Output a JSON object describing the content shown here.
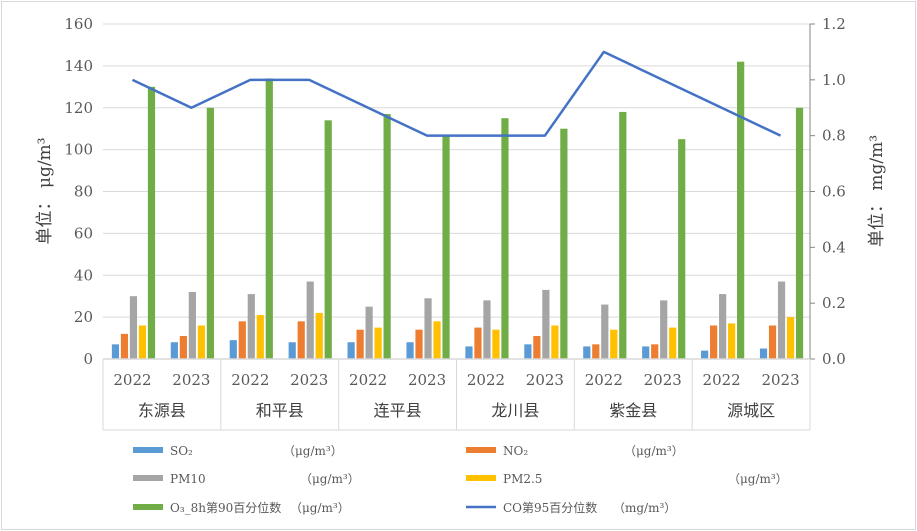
{
  "chart_data": {
    "type": "bar",
    "title": "",
    "ylabel": "单位： μg/m³",
    "y2label": "单位： mg/m³",
    "ylim": [
      0,
      160
    ],
    "y2lim": [
      0,
      1.2
    ],
    "yticks": [
      "0",
      "20",
      "40",
      "60",
      "80",
      "100",
      "120",
      "140",
      "160"
    ],
    "y2ticks": [
      "0.0",
      "0.2",
      "0.4",
      "0.6",
      "0.8",
      "1.0",
      "1.2"
    ],
    "grid": true,
    "legend_position": "bottom",
    "groups": [
      "东源县",
      "和平县",
      "连平县",
      "龙川县",
      "紫金县",
      "源城区"
    ],
    "years": [
      "2022",
      "2023"
    ],
    "categories": [
      "2022",
      "2023",
      "2022",
      "2023",
      "2022",
      "2023",
      "2022",
      "2023",
      "2022",
      "2023",
      "2022",
      "2023"
    ],
    "series": [
      {
        "name": "SO₂",
        "unit": "（μg/m³）",
        "type": "bar",
        "axis": "left",
        "color": "#5b9bd5",
        "values": [
          7,
          8,
          9,
          8,
          8,
          8,
          6,
          7,
          6,
          6,
          4,
          5
        ]
      },
      {
        "name": "NO₂",
        "unit": "（μg/m³）",
        "type": "bar",
        "axis": "left",
        "color": "#ed7d31",
        "values": [
          12,
          11,
          18,
          18,
          14,
          14,
          15,
          11,
          7,
          7,
          16,
          16
        ]
      },
      {
        "name": "PM10",
        "unit": "（μg/m³）",
        "type": "bar",
        "axis": "left",
        "color": "#a5a5a5",
        "values": [
          30,
          32,
          31,
          37,
          25,
          29,
          28,
          33,
          26,
          28,
          31,
          37
        ]
      },
      {
        "name": "PM2.5",
        "unit": "（μg/m³）",
        "type": "bar",
        "axis": "left",
        "color": "#ffc000",
        "values": [
          16,
          16,
          21,
          22,
          15,
          18,
          14,
          16,
          14,
          15,
          17,
          20
        ]
      },
      {
        "name": "O₃_8h第90百分位数",
        "unit": "（μg/m³）",
        "type": "bar",
        "axis": "left",
        "color": "#70ad47",
        "values": [
          130,
          120,
          134,
          114,
          117,
          107,
          115,
          110,
          118,
          105,
          142,
          120
        ]
      },
      {
        "name": "CO第95百分位数",
        "unit": "（mg/m³）",
        "type": "line",
        "axis": "right",
        "color": "#4472c4",
        "values": [
          1.0,
          0.9,
          1.0,
          1.0,
          0.9,
          0.8,
          0.8,
          0.8,
          1.1,
          1.0,
          0.9,
          0.8
        ]
      }
    ]
  }
}
